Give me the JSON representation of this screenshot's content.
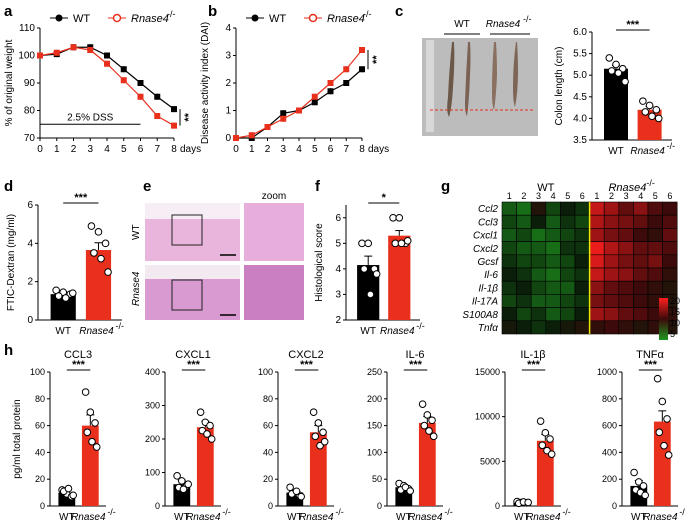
{
  "colors": {
    "wt": "#000000",
    "ko": "#e8301c",
    "heat_low": "#1e8c1e",
    "heat_high": "#ff1a1a"
  },
  "legend": {
    "wt": "WT",
    "ko": "Rnase4",
    "ko_sup": "-/-"
  },
  "panel_labels": [
    "a",
    "b",
    "c",
    "d",
    "e",
    "f",
    "g",
    "h"
  ],
  "sig": {
    "three": "***",
    "two": "**",
    "one": "*"
  },
  "panel_a": {
    "ylabel": "% of original weight",
    "xlabel": "days",
    "dss": "2.5% DSS",
    "chart_data": {
      "type": "line",
      "title": "",
      "x": [
        0,
        1,
        2,
        3,
        4,
        5,
        6,
        7,
        8
      ],
      "series": [
        {
          "name": "WT",
          "values": [
            100,
            100.5,
            103,
            103,
            100,
            95,
            90,
            85,
            80.5
          ]
        },
        {
          "name": "Rnase4-/-",
          "values": [
            100,
            101,
            103,
            102,
            97,
            91,
            85,
            78,
            74.5
          ]
        }
      ],
      "xlim": [
        0,
        8
      ],
      "ylim": [
        70,
        110
      ],
      "xticks": [
        "0",
        "1",
        "2",
        "3",
        "4",
        "5",
        "6",
        "7",
        "8"
      ],
      "yticks": [
        "70",
        "80",
        "90",
        "100",
        "110"
      ]
    }
  },
  "panel_b": {
    "ylabel": "Disease activity index (DAI)",
    "xlabel": "days",
    "chart_data": {
      "type": "line",
      "title": "",
      "x": [
        0,
        1,
        2,
        3,
        4,
        5,
        6,
        7,
        8
      ],
      "series": [
        {
          "name": "WT",
          "values": [
            0,
            0,
            0.4,
            0.9,
            1.0,
            1.3,
            1.7,
            2.0,
            2.5
          ]
        },
        {
          "name": "Rnase4-/-",
          "values": [
            0,
            0.1,
            0.4,
            0.7,
            1.0,
            1.5,
            2.0,
            2.5,
            3.2
          ]
        }
      ],
      "xlim": [
        0,
        8
      ],
      "ylim": [
        0,
        4
      ],
      "xticks": [
        "0",
        "1",
        "2",
        "3",
        "4",
        "5",
        "6",
        "7",
        "8"
      ],
      "yticks": [
        "0",
        "1",
        "2",
        "3",
        "4"
      ]
    }
  },
  "panel_c": {
    "photo_labels": [
      "WT",
      "Rnase4"
    ],
    "ylabel": "Colon length (cm)",
    "chart_data": {
      "type": "bar",
      "title": "",
      "categories": [
        "WT",
        "Rnase4-/-"
      ],
      "values": [
        5.15,
        4.2
      ],
      "errors": [
        0.08,
        0.08
      ],
      "points": [
        [
          5.4,
          5.25,
          5.15,
          5.1,
          5.05,
          4.85
        ],
        [
          4.4,
          4.3,
          4.2,
          4.15,
          4.05,
          4.0
        ]
      ],
      "ylim": [
        3.5,
        6.0
      ],
      "yticks": [
        "3.5",
        "4.0",
        "4.5",
        "5.0",
        "5.5",
        "6.0"
      ]
    }
  },
  "panel_d": {
    "ylabel": "FTIC-Dextran (mg/ml)",
    "chart_data": {
      "type": "bar",
      "title": "",
      "categories": [
        "WT",
        "Rnase4-/-"
      ],
      "values": [
        1.35,
        3.65
      ],
      "errors": [
        0.12,
        0.38
      ],
      "points": [
        [
          1.55,
          1.45,
          1.35,
          1.25,
          1.15,
          1.4
        ],
        [
          4.9,
          4.6,
          4.0,
          3.5,
          3.2,
          2.5
        ]
      ],
      "ylim": [
        0,
        6
      ],
      "yticks": [
        "0",
        "2",
        "4",
        "6"
      ]
    }
  },
  "panel_e": {
    "zoom": "zoom",
    "row_wt": "WT",
    "row_ko": "Rnase4"
  },
  "panel_f": {
    "ylabel": "Histological score",
    "chart_data": {
      "type": "bar",
      "title": "",
      "categories": [
        "WT",
        "Rnase4-/-"
      ],
      "values": [
        4.15,
        5.3
      ],
      "errors": [
        0.35,
        0.2
      ],
      "points": [
        [
          5.0,
          5.0,
          4.0,
          4.0,
          3.0,
          3.8
        ],
        [
          6.0,
          6.0,
          5.0,
          5.0,
          5.0,
          5.1
        ]
      ],
      "ylim": [
        2,
        6.5
      ],
      "yticks": [
        "2",
        "3",
        "4",
        "5",
        "6"
      ]
    }
  },
  "panel_g": {
    "group_wt": "WT",
    "group_ko": "Rnase4",
    "columns": [
      "1",
      "2",
      "3",
      "4",
      "5",
      "6",
      "1",
      "2",
      "3",
      "4",
      "5",
      "6"
    ],
    "legend_ticks": [
      "20",
      "15",
      "10",
      "5"
    ],
    "chart_data": {
      "type": "heatmap",
      "rows": [
        "Ccl2",
        "Ccl3",
        "Cxcl1",
        "Cxcl2",
        "Gcsf",
        "Il-6",
        "Il-1β",
        "Il-17A",
        "S100A8",
        "Tnfα"
      ],
      "values": [
        [
          3,
          2,
          8,
          4,
          6,
          5,
          17,
          15,
          12,
          14,
          11,
          10
        ],
        [
          4,
          3,
          6,
          3,
          5,
          4,
          16,
          14,
          13,
          12,
          10,
          11
        ],
        [
          3,
          4,
          2,
          3,
          4,
          5,
          15,
          13,
          12,
          10,
          9,
          12
        ],
        [
          4,
          3,
          3,
          2,
          5,
          5,
          19,
          16,
          14,
          12,
          12,
          11
        ],
        [
          5,
          4,
          4,
          3,
          4,
          6,
          18,
          15,
          13,
          12,
          13,
          10
        ],
        [
          6,
          5,
          3,
          2,
          4,
          5,
          17,
          15,
          14,
          12,
          11,
          9
        ],
        [
          5,
          6,
          4,
          3,
          3,
          6,
          14,
          12,
          11,
          10,
          9,
          8
        ],
        [
          4,
          5,
          3,
          3,
          4,
          5,
          13,
          12,
          11,
          10,
          9,
          8
        ],
        [
          6,
          4,
          5,
          3,
          4,
          6,
          15,
          14,
          12,
          11,
          10,
          9
        ],
        [
          7,
          6,
          5,
          6,
          7,
          8,
          9,
          10,
          9,
          8,
          9,
          8
        ]
      ],
      "vmin": 0,
      "vmax": 20
    }
  },
  "panel_h": {
    "ylabel": "pg/ml total protein",
    "chart_data": [
      {
        "type": "bar",
        "title": "CCL3",
        "categories": [
          "WT",
          "Rnase4-/-"
        ],
        "values": [
          10,
          60
        ],
        "errors": [
          2,
          8
        ],
        "points": [
          [
            12,
            9,
            7,
            11,
            13,
            8
          ],
          [
            85,
            70,
            62,
            55,
            48,
            44
          ]
        ],
        "ylim": [
          0,
          100
        ],
        "yticks": [
          "0",
          "20",
          "40",
          "60",
          "80",
          "100"
        ]
      },
      {
        "type": "bar",
        "title": "CXCL1",
        "categories": [
          "WT",
          "Rnase4-/-"
        ],
        "values": [
          65,
          235
        ],
        "errors": [
          12,
          18
        ],
        "points": [
          [
            90,
            75,
            60,
            55,
            50,
            65
          ],
          [
            280,
            250,
            240,
            225,
            215,
            200
          ]
        ],
        "ylim": [
          0,
          400
        ],
        "yticks": [
          "0",
          "100",
          "200",
          "300",
          "400"
        ]
      },
      {
        "type": "bar",
        "title": "CXCL2",
        "categories": [
          "WT",
          "Rnase4-/-"
        ],
        "values": [
          10,
          55
        ],
        "errors": [
          2,
          5
        ],
        "points": [
          [
            14,
            10,
            8,
            9,
            11,
            7
          ],
          [
            70,
            62,
            55,
            52,
            45,
            48
          ]
        ],
        "ylim": [
          0,
          100
        ],
        "yticks": [
          "0",
          "20",
          "40",
          "60",
          "80",
          "100"
        ]
      },
      {
        "type": "bar",
        "title": "IL-6",
        "categories": [
          "WT",
          "Rnase4-/-"
        ],
        "values": [
          35,
          155
        ],
        "errors": [
          5,
          12
        ],
        "points": [
          [
            42,
            38,
            32,
            30,
            35,
            28
          ],
          [
            190,
            170,
            160,
            150,
            140,
            130
          ]
        ],
        "ylim": [
          0,
          250
        ],
        "yticks": [
          "0",
          "50",
          "100",
          "150",
          "200",
          "250"
        ]
      },
      {
        "type": "bar",
        "title": "IL-1β",
        "categories": [
          "WT",
          "Rnase4-/-"
        ],
        "values": [
          400,
          7300
        ],
        "errors": [
          80,
          700
        ],
        "points": [
          [
            500,
            400,
            350,
            300,
            450,
            400
          ],
          [
            9500,
            8200,
            7500,
            6800,
            6200,
            5800
          ]
        ],
        "ylim": [
          0,
          15000
        ],
        "yticks": [
          "0",
          "5000",
          "10000",
          "15000"
        ]
      },
      {
        "type": "bar",
        "title": "TNFα",
        "categories": [
          "WT",
          "Rnase4-/-"
        ],
        "values": [
          150,
          630
        ],
        "errors": [
          40,
          80
        ],
        "points": [
          [
            250,
            180,
            150,
            120,
            100,
            80
          ],
          [
            950,
            780,
            650,
            550,
            450,
            380
          ]
        ],
        "ylim": [
          0,
          1000
        ],
        "yticks": [
          "0",
          "200",
          "400",
          "600",
          "800",
          "1000"
        ]
      }
    ]
  }
}
